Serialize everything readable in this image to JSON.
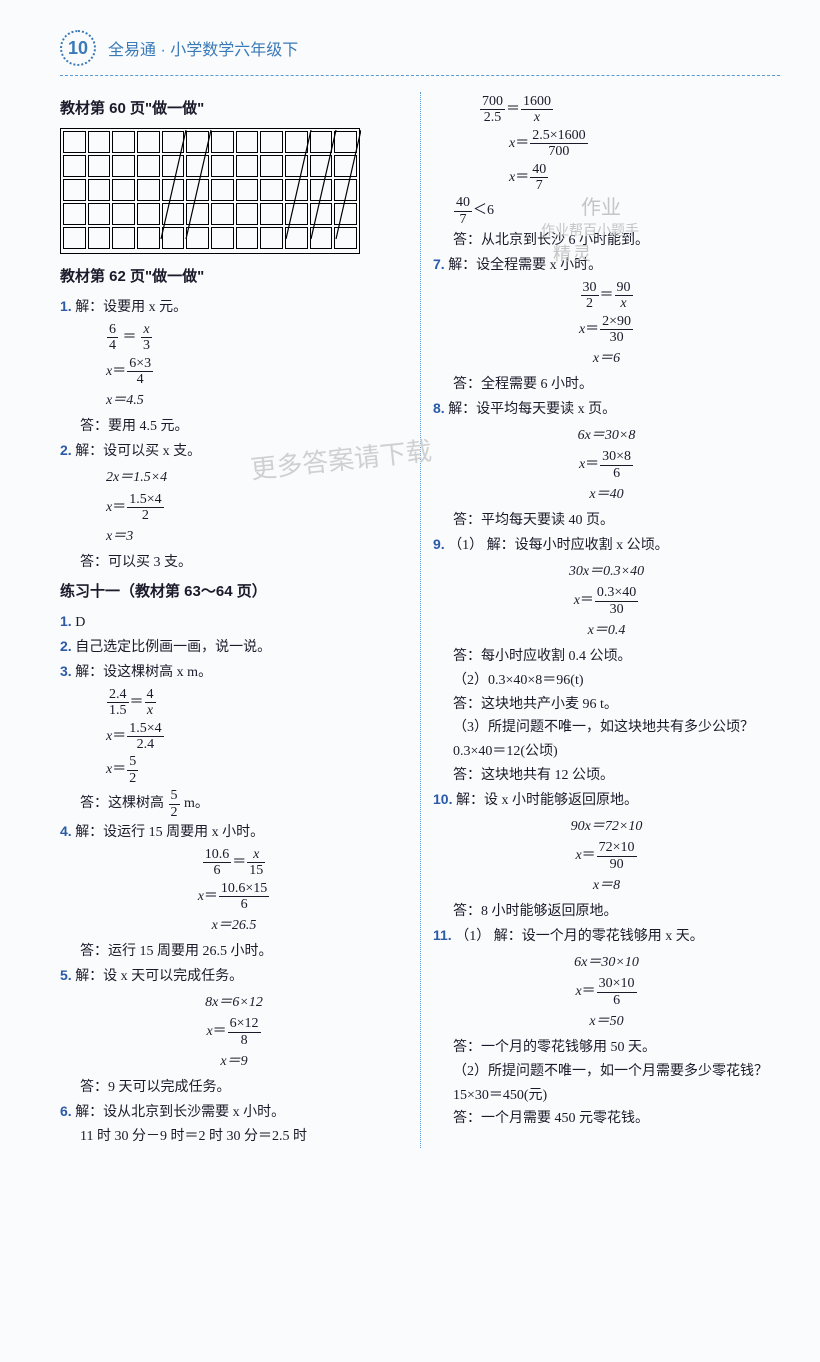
{
  "header": {
    "page_number": "10",
    "title": "全易通 · 小学数学六年级下",
    "color_accent": "#3a7ab8"
  },
  "watermarks": {
    "main": "更多答案请下载",
    "stamp_line1": "作业",
    "stamp_line2": "作业帮百小题手",
    "stamp_line3": "精灵"
  },
  "grid_figure": {
    "rows": 5,
    "cols": 12,
    "diagonals": [
      {
        "c": 4,
        "r1": 0,
        "r2": 4
      },
      {
        "c": 5,
        "r1": 0,
        "r2": 4
      },
      {
        "c": 9,
        "r1": 0,
        "r2": 4
      },
      {
        "c": 10,
        "r1": 0,
        "r2": 4
      },
      {
        "c": 11,
        "r1": 0,
        "r2": 4
      }
    ]
  },
  "left": {
    "sec60": "教材第 60 页\"做一做\"",
    "sec62": "教材第 62 页\"做一做\"",
    "q1": {
      "num": "1.",
      "head": "解：设要用 x 元。",
      "l1_a": "6",
      "l1_b": "4",
      "l1_c": "x",
      "l1_d": "3",
      "l2_n": "6×3",
      "l2_d": "4",
      "l3": "x＝4.5",
      "ans": "答：要用 4.5 元。"
    },
    "q2": {
      "num": "2.",
      "head": "解：设可以买 x 支。",
      "l1": "2x＝1.5×4",
      "l2_n": "1.5×4",
      "l2_d": "2",
      "l3": "x＝3",
      "ans": "答：可以买 3 支。"
    },
    "sec_ex11": "练习十一（教材第 63～64 页）",
    "ex1": {
      "num": "1.",
      "text": "D"
    },
    "ex2": {
      "num": "2.",
      "text": "自己选定比例画一画，说一说。"
    },
    "ex3": {
      "num": "3.",
      "head": "解：设这棵树高 x m。",
      "l1_a": "2.4",
      "l1_b": "1.5",
      "l1_c": "4",
      "l1_d": "x",
      "l2_n": "1.5×4",
      "l2_d": "2.4",
      "l3_n": "5",
      "l3_d": "2",
      "ans_a": "答：这棵树高",
      "ans_n": "5",
      "ans_d": "2",
      "ans_b": " m。"
    },
    "ex4": {
      "num": "4.",
      "head": "解：设运行 15 周要用 x 小时。",
      "l1_a": "10.6",
      "l1_b": "6",
      "l1_c": "x",
      "l1_d": "15",
      "l2_n": "10.6×15",
      "l2_d": "6",
      "l3": "x＝26.5",
      "ans": "答：运行 15 周要用 26.5 小时。"
    },
    "ex5": {
      "num": "5.",
      "head": "解：设 x 天可以完成任务。",
      "l1": "8x＝6×12",
      "l2_n": "6×12",
      "l2_d": "8",
      "l3": "x＝9",
      "ans": "答：9 天可以完成任务。"
    },
    "ex6": {
      "num": "6.",
      "head": "解：设从北京到长沙需要 x 小时。",
      "l1": "11 时 30 分－9 时＝2 时 30 分＝2.5 时"
    }
  },
  "right": {
    "r6": {
      "l1_a": "700",
      "l1_b": "2.5",
      "l1_c": "1600",
      "l1_d": "x",
      "l2_n": "2.5×1600",
      "l2_d": "700",
      "l3_n": "40",
      "l3_d": "7",
      "cmp_n": "40",
      "cmp_d": "7",
      "cmp_b": "＜6",
      "ans": "答：从北京到长沙 6 小时能到。"
    },
    "q7": {
      "num": "7.",
      "head": "解：设全程需要 x 小时。",
      "l1_a": "30",
      "l1_b": "2",
      "l1_c": "90",
      "l1_d": "x",
      "l2_n": "2×90",
      "l2_d": "30",
      "l3": "x＝6",
      "ans": "答：全程需要 6 小时。"
    },
    "q8": {
      "num": "8.",
      "head": "解：设平均每天要读 x 页。",
      "l1": "6x＝30×8",
      "l2_n": "30×8",
      "l2_d": "6",
      "l3": "x＝40",
      "ans": "答：平均每天要读 40 页。"
    },
    "q9": {
      "num": "9.",
      "p1_label": "（1）",
      "p1_head": "解：设每小时应收割 x 公顷。",
      "l1": "30x＝0.3×40",
      "l2_n": "0.3×40",
      "l2_d": "30",
      "l3": "x＝0.4",
      "p1_ans": "答：每小时应收割 0.4 公顷。",
      "p2": "（2）0.3×40×8＝96(t)",
      "p2_ans": "答：这块地共产小麦 96 t。",
      "p3": "（3）所提问题不唯一，如这块地共有多少公顷？",
      "p3_calc": "0.3×40＝12(公顷)",
      "p3_ans": "答：这块地共有 12 公顷。"
    },
    "q10": {
      "num": "10.",
      "head": "解：设 x 小时能够返回原地。",
      "l1": "90x＝72×10",
      "l2_n": "72×10",
      "l2_d": "90",
      "l3": "x＝8",
      "ans": "答：8 小时能够返回原地。"
    },
    "q11": {
      "num": "11.",
      "p1_label": "（1）",
      "p1_head": "解：设一个月的零花钱够用 x 天。",
      "l1": "6x＝30×10",
      "l2_n": "30×10",
      "l2_d": "6",
      "l3": "x＝50",
      "p1_ans": "答：一个月的零花钱够用 50 天。",
      "p2": "（2）所提问题不唯一，如一个月需要多少零花钱？",
      "p2_calc": "15×30＝450(元)",
      "p2_ans": "答：一个月需要 450 元零花钱。"
    }
  }
}
